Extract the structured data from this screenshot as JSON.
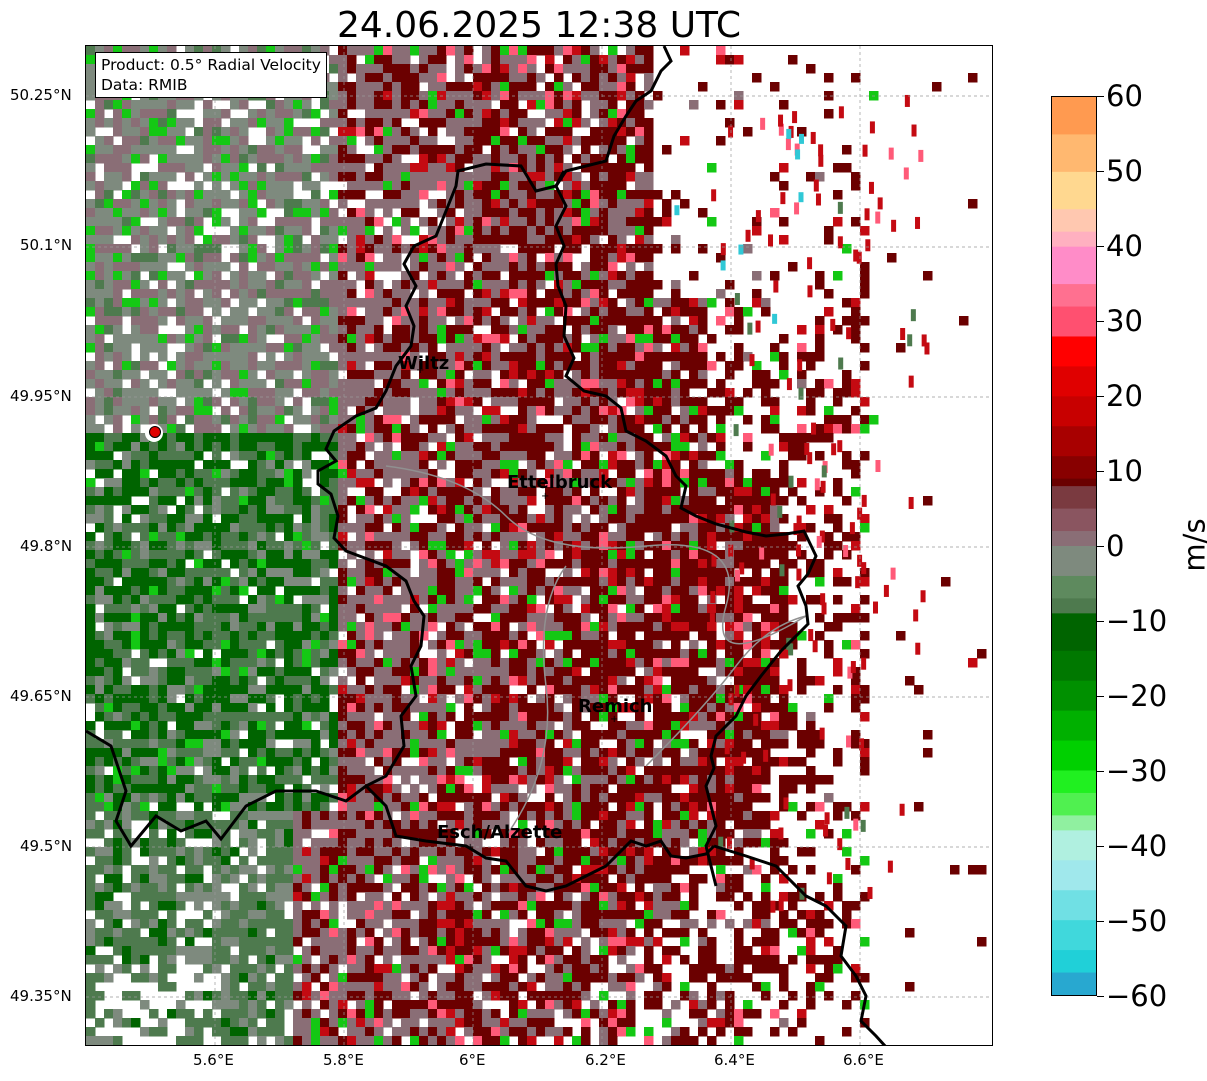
{
  "title": "24.06.2025 12:38 UTC",
  "info": {
    "product": "Product: 0.5° Radial Velocity",
    "data": "Data: RMIB"
  },
  "lat_labels": [
    "50.25°N",
    "50.1°N",
    "49.95°N",
    "49.8°N",
    "49.65°N",
    "49.5°N",
    "49.35°N"
  ],
  "lon_labels": [
    "5.6°E",
    "5.8°E",
    "6°E",
    "6.2°E",
    "6.4°E",
    "6.6°E"
  ],
  "cities": [
    {
      "name": "Wiltz"
    },
    {
      "name": "Ettelbruck"
    },
    {
      "name": "Remich"
    },
    {
      "name": "Esch/Alzette"
    }
  ],
  "colorbar": {
    "unit": "m/s",
    "min": -60,
    "max": 60,
    "tick_labels": [
      "60",
      "50",
      "40",
      "30",
      "20",
      "10",
      "0",
      "−10",
      "−20",
      "−30",
      "−40",
      "−50",
      "−60"
    ]
  },
  "colors": {
    "strong_outbound": "#6b0000",
    "outbound": "#c40a12",
    "pink": "#ff5a78",
    "near_zero": "#8a6e76",
    "neutral": "#7e8a7e",
    "inbound": "#4e7a4e",
    "dark_green": "#006400",
    "bright_green": "#14c814",
    "cyan": "#30c8d6",
    "radar_site": "#e00000",
    "border": "#000000",
    "river": "#909090"
  }
}
